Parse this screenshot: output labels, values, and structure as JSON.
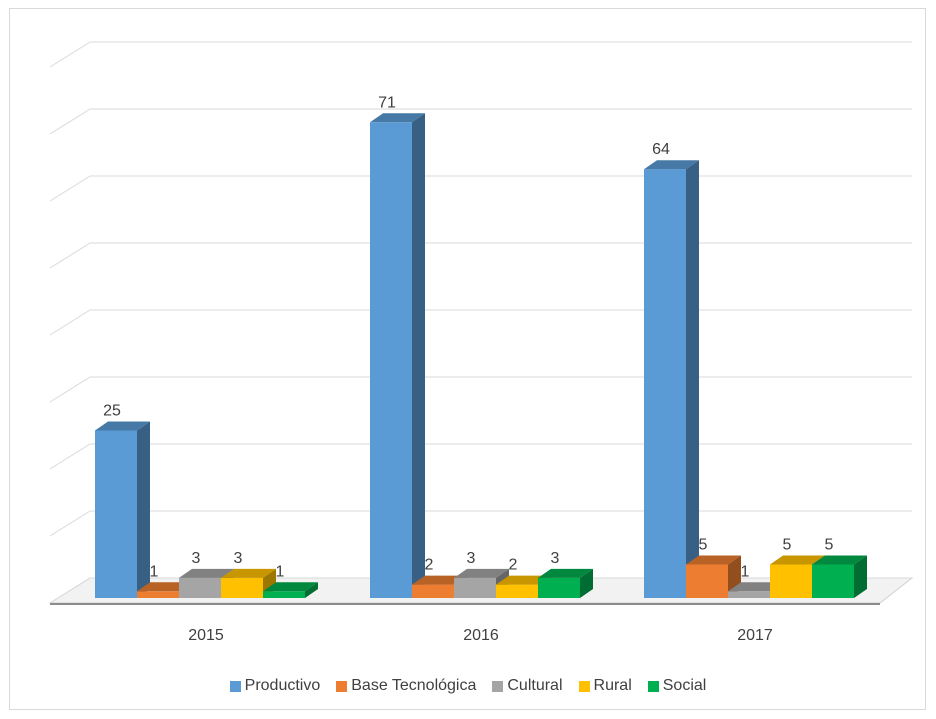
{
  "chart_data": {
    "type": "bar",
    "categories": [
      "2015",
      "2016",
      "2017"
    ],
    "series": [
      {
        "name": "Productivo",
        "color": "#5b9bd5",
        "values": [
          25,
          71,
          64
        ]
      },
      {
        "name": "Base Tecnológica",
        "color": "#ed7d31",
        "values": [
          1,
          2,
          5
        ]
      },
      {
        "name": "Cultural",
        "color": "#a5a5a5",
        "values": [
          3,
          3,
          1
        ]
      },
      {
        "name": "Rural",
        "color": "#ffc000",
        "values": [
          3,
          2,
          5
        ]
      },
      {
        "name": "Social",
        "color": "#00b050",
        "values": [
          1,
          3,
          5
        ]
      }
    ],
    "ylim": [
      0,
      80
    ],
    "grid": true,
    "style": "3d-clustered-column",
    "data_labels": true,
    "legend_position": "bottom"
  }
}
